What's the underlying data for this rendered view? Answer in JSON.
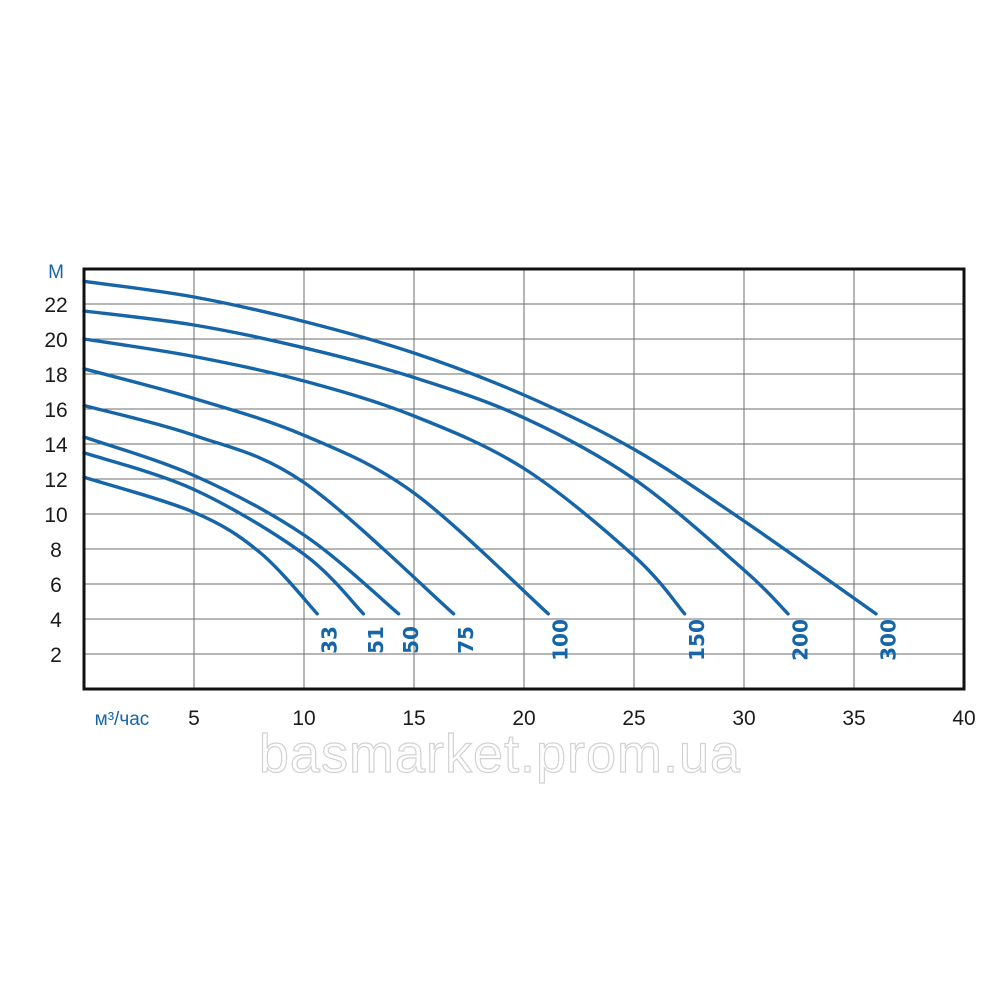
{
  "chart_data": {
    "type": "line",
    "ylabel": "М",
    "xlabel": "м³/час",
    "xlim": [
      0,
      40
    ],
    "ylim": [
      0,
      24
    ],
    "x_ticks": [
      5,
      10,
      15,
      20,
      25,
      30,
      35,
      40
    ],
    "y_ticks": [
      2,
      4,
      6,
      8,
      10,
      12,
      14,
      16,
      18,
      20,
      22
    ],
    "grid": true,
    "series": [
      {
        "name": "33",
        "points": [
          [
            0,
            12.1
          ],
          [
            5,
            10.1
          ],
          [
            8,
            7.8
          ],
          [
            10.6,
            4.3
          ]
        ]
      },
      {
        "name": "51",
        "points": [
          [
            0,
            13.5
          ],
          [
            5,
            11.4
          ],
          [
            10,
            7.7
          ],
          [
            12.7,
            4.3
          ]
        ]
      },
      {
        "name": "50",
        "points": [
          [
            0,
            14.4
          ],
          [
            5,
            12.2
          ],
          [
            10,
            8.8
          ],
          [
            14.3,
            4.3
          ]
        ]
      },
      {
        "name": "75",
        "points": [
          [
            0,
            16.2
          ],
          [
            5,
            14.5
          ],
          [
            10,
            11.8
          ],
          [
            16.8,
            4.3
          ]
        ]
      },
      {
        "name": "100",
        "points": [
          [
            0,
            18.3
          ],
          [
            5,
            16.6
          ],
          [
            10,
            14.5
          ],
          [
            15,
            11.2
          ],
          [
            21.1,
            4.3
          ]
        ]
      },
      {
        "name": "150",
        "points": [
          [
            0,
            20.0
          ],
          [
            5,
            19.0
          ],
          [
            10,
            17.6
          ],
          [
            15,
            15.6
          ],
          [
            20,
            12.6
          ],
          [
            25,
            7.6
          ],
          [
            27.3,
            4.3
          ]
        ]
      },
      {
        "name": "200",
        "points": [
          [
            0,
            21.6
          ],
          [
            5,
            20.8
          ],
          [
            10,
            19.5
          ],
          [
            15,
            17.8
          ],
          [
            20,
            15.5
          ],
          [
            25,
            12.0
          ],
          [
            30,
            6.8
          ],
          [
            32.0,
            4.3
          ]
        ]
      },
      {
        "name": "300",
        "points": [
          [
            0,
            23.3
          ],
          [
            5,
            22.4
          ],
          [
            10,
            21.0
          ],
          [
            15,
            19.2
          ],
          [
            20,
            16.8
          ],
          [
            25,
            13.7
          ],
          [
            30,
            9.6
          ],
          [
            36.0,
            4.3
          ]
        ]
      }
    ],
    "line_color": "#1565a8"
  },
  "watermark": "basmarket.prom.ua"
}
